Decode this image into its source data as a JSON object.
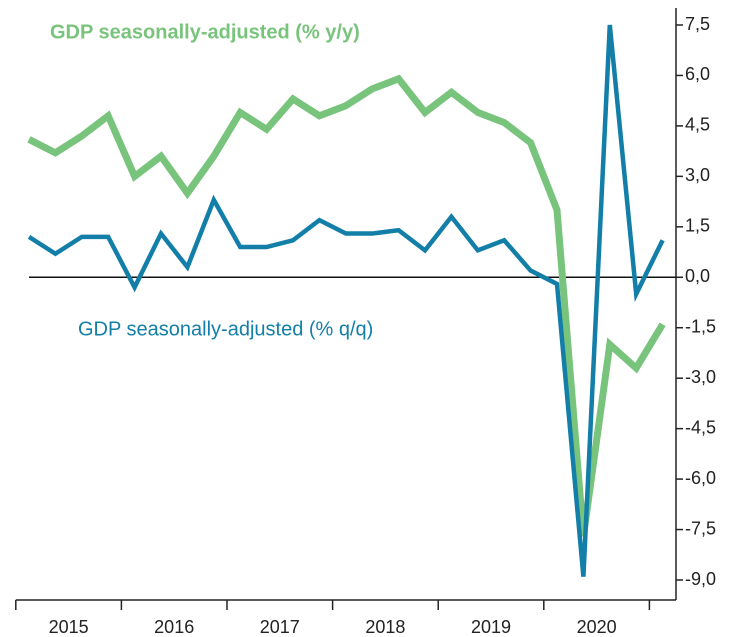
{
  "chart_data": {
    "type": "line",
    "categories": [
      null,
      null,
      null,
      null,
      null,
      null,
      null,
      null,
      null,
      null,
      null,
      null,
      null,
      null,
      null,
      null,
      null,
      null,
      null,
      null,
      null,
      null,
      null,
      null,
      null
    ],
    "year_labels": [
      "2015",
      "2016",
      "2017",
      "2018",
      "2019",
      "2020"
    ],
    "series": [
      {
        "name": "GDP seasonally-adjusted (% y/y)",
        "color": "#79c47c",
        "values": [
          4.1,
          3.7,
          4.2,
          4.8,
          3.0,
          3.6,
          2.5,
          3.6,
          4.9,
          4.4,
          5.3,
          4.8,
          5.1,
          5.6,
          5.9,
          4.9,
          5.5,
          4.9,
          4.6,
          4.0,
          2.0,
          -7.7,
          -2.0,
          -2.7,
          -1.4
        ]
      },
      {
        "name": "GDP seasonally-adjusted (% q/q)",
        "color": "#137fa8",
        "values": [
          1.2,
          0.7,
          1.2,
          1.2,
          -0.3,
          1.3,
          0.3,
          2.3,
          0.9,
          0.9,
          1.1,
          1.7,
          1.3,
          1.3,
          1.4,
          0.8,
          1.8,
          0.8,
          1.1,
          0.2,
          -0.2,
          -8.9,
          7.5,
          -0.5,
          1.1
        ]
      }
    ],
    "ylim": [
      -9.0,
      7.5
    ],
    "yticks": [
      {
        "value": 7.5,
        "label": "7,5"
      },
      {
        "value": 6.0,
        "label": "6,0"
      },
      {
        "value": 4.5,
        "label": "4,5"
      },
      {
        "value": 3.0,
        "label": "3,0"
      },
      {
        "value": 1.5,
        "label": "1,5"
      },
      {
        "value": 0,
        "label": "0,0"
      },
      {
        "value": -1.5,
        "label": "-1,5"
      },
      {
        "value": -3.0,
        "label": "-3,0"
      },
      {
        "value": -4.5,
        "label": "-4,5"
      },
      {
        "value": -6.0,
        "label": "-6,0"
      },
      {
        "value": -7.5,
        "label": "-7,5"
      },
      {
        "value": -9.0,
        "label": "-9,0"
      }
    ],
    "y_axis_side": "right"
  }
}
